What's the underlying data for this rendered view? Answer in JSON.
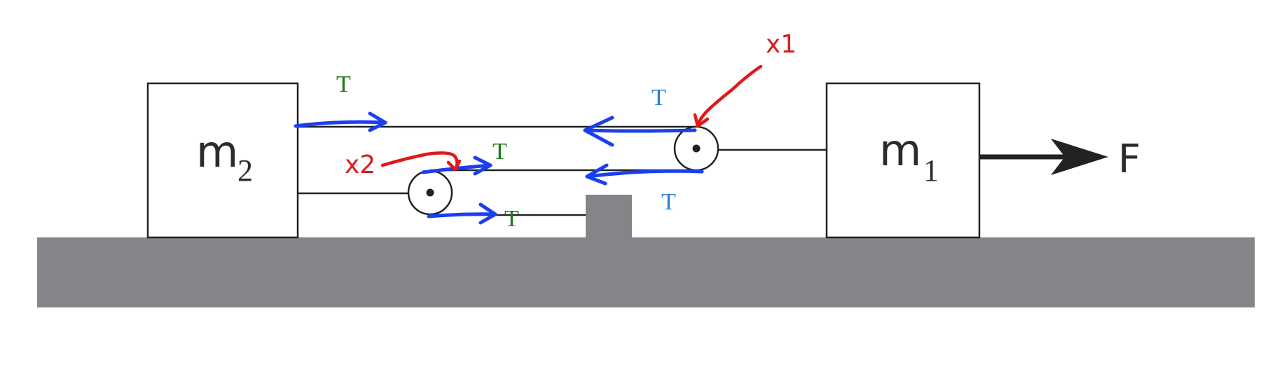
{
  "blocks": {
    "m2": {
      "letter": "m",
      "subscript": "2"
    },
    "m1": {
      "letter": "m",
      "subscript": "1"
    }
  },
  "applied_force": {
    "label": "F"
  },
  "tension_labels": {
    "top_left": "T",
    "top_right": "T",
    "middle": "T",
    "lower_right": "T",
    "bottom": "T"
  },
  "annotations": {
    "pulley_1": "x1",
    "pulley_2": "x2"
  },
  "colors": {
    "ground": "#848588",
    "tension_arrows": "#1a3ff0",
    "tension_label_green": "#1f7a1f",
    "tension_label_blue": "#2f7fd6",
    "annotation_red": "#e01818"
  }
}
